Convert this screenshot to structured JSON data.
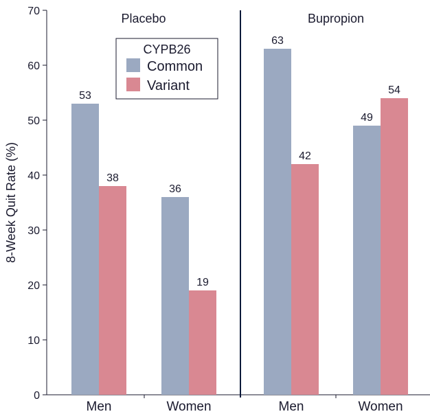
{
  "chart_data": {
    "type": "bar",
    "ylabel": "8-Week Quit Rate (%)",
    "ylim": [
      0,
      70
    ],
    "yticks": [
      0,
      10,
      20,
      30,
      40,
      50,
      60,
      70
    ],
    "legend": {
      "title": "CYPB26",
      "placement": "top-left of left panel",
      "entries": [
        {
          "name": "Common",
          "color": "#9ba9c1"
        },
        {
          "name": "Variant",
          "color": "#d98892"
        }
      ]
    },
    "panels": [
      {
        "title": "Placebo",
        "categories": [
          "Men",
          "Women"
        ],
        "series": [
          {
            "name": "Common",
            "values": [
              53,
              36
            ]
          },
          {
            "name": "Variant",
            "values": [
              38,
              19
            ]
          }
        ]
      },
      {
        "title": "Bupropion",
        "categories": [
          "Men",
          "Women"
        ],
        "series": [
          {
            "name": "Common",
            "values": [
              63,
              49
            ]
          },
          {
            "name": "Variant",
            "values": [
              42,
              54
            ]
          }
        ]
      }
    ],
    "colors": {
      "axis": "#1a1a2e",
      "divider": "#0b1a3a"
    }
  }
}
